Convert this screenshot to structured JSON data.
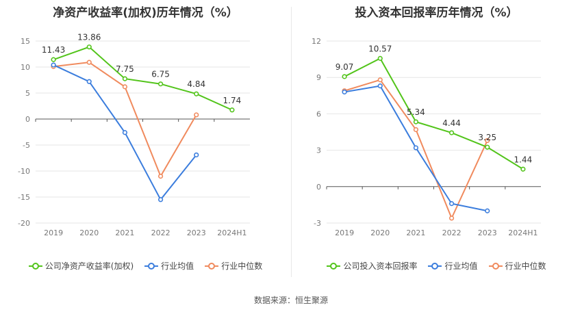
{
  "charts": [
    {
      "title": "净资产收益率(加权)历年情况（%）",
      "legend": [
        "公司净资产收益率(加权)",
        "行业均值",
        "行业中位数"
      ]
    },
    {
      "title": "投入资本回报率历年情况（%）",
      "legend": [
        "公司投入资本回报率",
        "行业均值",
        "行业中位数"
      ]
    }
  ],
  "source": "数据来源：恒生聚源",
  "colors": {
    "company": "#52c41a",
    "avg": "#3b7ddd",
    "median": "#f08a5d"
  },
  "chart_data": [
    {
      "type": "line",
      "title": "净资产收益率(加权)历年情况（%）",
      "categories": [
        "2019",
        "2020",
        "2021",
        "2022",
        "2023",
        "2024H1"
      ],
      "ylim": [
        -20,
        15
      ],
      "yticks": [
        15,
        10,
        5,
        0,
        -5,
        -10,
        -15,
        -20
      ],
      "grid": true,
      "legend_position": "bottom",
      "series": [
        {
          "name": "公司净资产收益率(加权)",
          "values": [
            11.43,
            13.86,
            7.75,
            6.75,
            4.84,
            1.74
          ],
          "labels": [
            "11.43",
            "13.86",
            "7.75",
            "6.75",
            "4.84",
            "1.74"
          ]
        },
        {
          "name": "行业均值",
          "values": [
            10.4,
            7.2,
            -2.6,
            -15.5,
            -6.9,
            null
          ]
        },
        {
          "name": "行业中位数",
          "values": [
            10.1,
            10.9,
            6.2,
            -11.0,
            0.8,
            null
          ]
        }
      ]
    },
    {
      "type": "line",
      "title": "投入资本回报率历年情况（%）",
      "categories": [
        "2019",
        "2020",
        "2021",
        "2022",
        "2023",
        "2024H1"
      ],
      "ylim": [
        -3,
        12
      ],
      "yticks": [
        12,
        9,
        6,
        3,
        0,
        -3
      ],
      "grid": true,
      "legend_position": "bottom",
      "series": [
        {
          "name": "公司投入资本回报率",
          "values": [
            9.07,
            10.57,
            5.34,
            4.44,
            3.25,
            1.44
          ],
          "labels": [
            "9.07",
            "10.57",
            "5.34",
            "4.44",
            "3.25",
            "1.44"
          ]
        },
        {
          "name": "行业均值",
          "values": [
            7.8,
            8.3,
            3.2,
            -1.4,
            -2.0,
            null
          ]
        },
        {
          "name": "行业中位数",
          "values": [
            7.9,
            8.8,
            4.7,
            -2.6,
            3.8,
            null
          ]
        }
      ]
    }
  ]
}
